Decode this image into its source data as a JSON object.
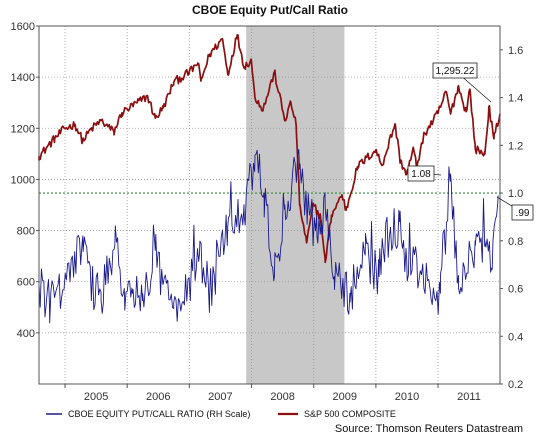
{
  "chart_data": {
    "type": "line",
    "title": "CBOE Equity Put/Call Ratio",
    "source": "Source: Thomson Reuters Datastream",
    "x_tick_labels": [
      "2005",
      "2006",
      "2007",
      "2008",
      "2009",
      "2010",
      "2011"
    ],
    "x_tick_dates": [
      "2005-01-01",
      "2006-01-01",
      "2007-01-01",
      "2008-01-01",
      "2009-01-01",
      "2010-01-01",
      "2011-01-01",
      "2012-01-01"
    ],
    "xlim": [
      "2004-08-01",
      "2011-12-31"
    ],
    "y_left": {
      "ticks": [
        400,
        600,
        800,
        1000,
        1200,
        1400,
        1600
      ],
      "ylim": [
        200,
        1600
      ]
    },
    "y_right": {
      "ticks": [
        0.2,
        0.4,
        0.6,
        0.8,
        1.0,
        1.2,
        1.4,
        1.6
      ],
      "ylim": [
        0.2,
        1.7
      ]
    },
    "recession_band": {
      "start": "2007-12-01",
      "end": "2009-06-30"
    },
    "reference_line": {
      "axis": "right",
      "value": 1.0,
      "color": "#3a8a3a"
    },
    "series": [
      {
        "name": "S&P 500 COMPOSITE",
        "axis": "left",
        "color": "#8b0f0f",
        "points": [
          [
            "2004-08-01",
            1090
          ],
          [
            "2004-11-01",
            1160
          ],
          [
            "2005-01-01",
            1200
          ],
          [
            "2005-03-01",
            1215
          ],
          [
            "2005-04-15",
            1150
          ],
          [
            "2005-06-01",
            1195
          ],
          [
            "2005-08-01",
            1230
          ],
          [
            "2005-10-15",
            1185
          ],
          [
            "2005-12-01",
            1260
          ],
          [
            "2006-03-01",
            1300
          ],
          [
            "2006-05-01",
            1325
          ],
          [
            "2006-06-15",
            1240
          ],
          [
            "2006-08-01",
            1280
          ],
          [
            "2006-10-01",
            1380
          ],
          [
            "2006-12-31",
            1418
          ],
          [
            "2007-02-20",
            1455
          ],
          [
            "2007-03-10",
            1385
          ],
          [
            "2007-05-01",
            1490
          ],
          [
            "2007-07-15",
            1550
          ],
          [
            "2007-08-15",
            1410
          ],
          [
            "2007-10-09",
            1565
          ],
          [
            "2007-11-20",
            1440
          ],
          [
            "2007-12-31",
            1468
          ],
          [
            "2008-01-20",
            1325
          ],
          [
            "2008-03-10",
            1275
          ],
          [
            "2008-05-15",
            1420
          ],
          [
            "2008-07-15",
            1230
          ],
          [
            "2008-08-20",
            1300
          ],
          [
            "2008-09-20",
            1210
          ],
          [
            "2008-10-10",
            900
          ],
          [
            "2008-11-20",
            752
          ],
          [
            "2008-12-31",
            903
          ],
          [
            "2009-02-10",
            850
          ],
          [
            "2009-03-09",
            676
          ],
          [
            "2009-04-15",
            860
          ],
          [
            "2009-06-15",
            940
          ],
          [
            "2009-07-10",
            880
          ],
          [
            "2009-09-15",
            1050
          ],
          [
            "2009-12-31",
            1115
          ],
          [
            "2010-02-05",
            1055
          ],
          [
            "2010-04-23",
            1217
          ],
          [
            "2010-05-25",
            1070
          ],
          [
            "2010-07-02",
            1022
          ],
          [
            "2010-08-10",
            1120
          ],
          [
            "2010-08-27",
            1050
          ],
          [
            "2010-10-15",
            1180
          ],
          [
            "2010-12-31",
            1258
          ],
          [
            "2011-02-18",
            1343
          ],
          [
            "2011-03-16",
            1256
          ],
          [
            "2011-04-29",
            1364
          ],
          [
            "2011-06-15",
            1265
          ],
          [
            "2011-07-07",
            1353
          ],
          [
            "2011-08-08",
            1119
          ],
          [
            "2011-10-03",
            1099
          ],
          [
            "2011-10-27",
            1285
          ],
          [
            "2011-11-25",
            1159
          ],
          [
            "2011-12-31",
            1257
          ]
        ]
      },
      {
        "name": "CBOE EQUITY PUT/CALL RATIO (RH Scale)",
        "axis": "right",
        "color": "#1a1a8c",
        "points": [
          [
            "2004-08-01",
            0.62
          ],
          [
            "2004-10-01",
            0.54
          ],
          [
            "2004-12-01",
            0.58
          ],
          [
            "2005-02-01",
            0.65
          ],
          [
            "2005-04-15",
            0.82
          ],
          [
            "2005-06-01",
            0.62
          ],
          [
            "2005-08-01",
            0.55
          ],
          [
            "2005-10-20",
            0.78
          ],
          [
            "2005-12-15",
            0.6
          ],
          [
            "2006-02-01",
            0.58
          ],
          [
            "2006-04-01",
            0.55
          ],
          [
            "2006-06-15",
            0.76
          ],
          [
            "2006-08-01",
            0.62
          ],
          [
            "2006-10-01",
            0.54
          ],
          [
            "2006-12-15",
            0.58
          ],
          [
            "2007-03-01",
            0.74
          ],
          [
            "2007-05-01",
            0.58
          ],
          [
            "2007-08-15",
            0.86
          ],
          [
            "2007-11-20",
            0.9
          ],
          [
            "2008-01-22",
            1.16
          ],
          [
            "2008-03-15",
            1.0
          ],
          [
            "2008-05-15",
            0.65
          ],
          [
            "2008-07-15",
            0.95
          ],
          [
            "2008-10-10",
            1.1
          ],
          [
            "2008-11-20",
            0.96
          ],
          [
            "2009-01-20",
            0.82
          ],
          [
            "2009-03-09",
            0.94
          ],
          [
            "2009-05-01",
            0.65
          ],
          [
            "2009-08-01",
            0.58
          ],
          [
            "2009-10-30",
            0.74
          ],
          [
            "2010-01-20",
            0.65
          ],
          [
            "2010-02-05",
            0.78
          ],
          [
            "2010-05-20",
            0.88
          ],
          [
            "2010-07-01",
            0.72
          ],
          [
            "2010-09-01",
            0.66
          ],
          [
            "2010-11-15",
            0.6
          ],
          [
            "2011-01-15",
            0.58
          ],
          [
            "2011-03-16",
            1.08
          ],
          [
            "2011-05-01",
            0.6
          ],
          [
            "2011-08-08",
            0.78
          ],
          [
            "2011-10-03",
            0.8
          ],
          [
            "2011-11-15",
            0.68
          ],
          [
            "2011-12-20",
            0.99
          ]
        ]
      }
    ],
    "annotations": [
      {
        "text": "1,295.22",
        "series": "S&P 500 COMPOSITE",
        "date": "2011-12-20",
        "value": 1295.22
      },
      {
        "text": "1.08",
        "series": "CBOE EQUITY PUT/CALL RATIO (RH Scale)",
        "date": "2011-03-16",
        "value": 1.08
      },
      {
        "text": ".99",
        "series": "CBOE EQUITY PUT/CALL RATIO (RH Scale)",
        "date": "2011-12-20",
        "value": 0.99
      }
    ],
    "grid": true,
    "legend_position": "bottom-left"
  },
  "legend": {
    "put_call_label": "CBOE EQUITY PUT/CALL RATIO (RH Scale)",
    "sp500_label": "S&P 500 COMPOSITE"
  }
}
